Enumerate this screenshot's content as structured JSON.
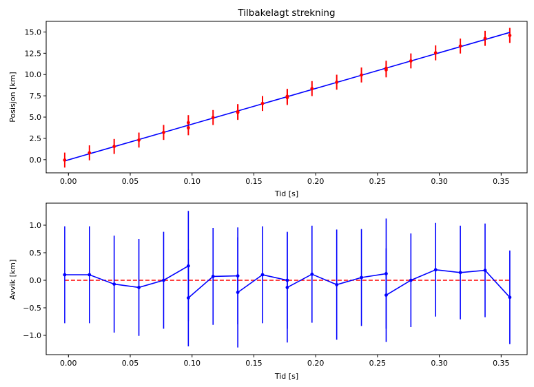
{
  "chart_data": [
    {
      "type": "scatter",
      "title": "Tilbakelagt strekning",
      "xlabel": "Tid [s]",
      "ylabel": "Posisjon [km]",
      "xlim": [
        -0.018,
        0.371
      ],
      "ylim": [
        -1.55,
        16.25
      ],
      "xticks": [
        0.0,
        0.05,
        0.1,
        0.15,
        0.2,
        0.25,
        0.3,
        0.35
      ],
      "xtick_labels": [
        "0.00",
        "0.05",
        "0.10",
        "0.15",
        "0.20",
        "0.25",
        "0.30",
        "0.35"
      ],
      "yticks": [
        0.0,
        2.5,
        5.0,
        7.5,
        10.0,
        12.5,
        15.0
      ],
      "ytick_labels": [
        "0.0",
        "2.5",
        "5.0",
        "7.5",
        "10.0",
        "12.5",
        "15.0"
      ],
      "grid": false,
      "colors": {
        "points": "#ff0000",
        "fit": "#0000ff"
      },
      "series": [
        {
          "kind": "errorbar",
          "x": [
            -0.003,
            0.017,
            0.037,
            0.057,
            0.077,
            0.097,
            0.097,
            0.117,
            0.137,
            0.137,
            0.157,
            0.177,
            0.177,
            0.197,
            0.217,
            0.237,
            0.257,
            0.257,
            0.277,
            0.297,
            0.317,
            0.337,
            0.357
          ],
          "y": [
            -0.05,
            0.8,
            1.55,
            2.3,
            3.2,
            4.35,
            3.75,
            4.95,
            5.65,
            5.55,
            6.6,
            7.45,
            7.3,
            8.35,
            9.1,
            9.95,
            10.75,
            10.55,
            11.6,
            12.55,
            13.35,
            14.25,
            14.6
          ],
          "yerr": 0.88
        },
        {
          "kind": "line",
          "x": [
            -0.003,
            0.357
          ],
          "y": [
            -0.15,
            14.95
          ]
        }
      ]
    },
    {
      "type": "line",
      "title": "",
      "xlabel": "Tid [s]",
      "ylabel": "Avvik [km]",
      "xlim": [
        -0.018,
        0.371
      ],
      "ylim": [
        -1.35,
        1.4
      ],
      "xticks": [
        0.0,
        0.05,
        0.1,
        0.15,
        0.2,
        0.25,
        0.3,
        0.35
      ],
      "xtick_labels": [
        "0.00",
        "0.05",
        "0.10",
        "0.15",
        "0.20",
        "0.25",
        "0.30",
        "0.35"
      ],
      "yticks": [
        -1.0,
        -0.5,
        0.0,
        0.5,
        1.0
      ],
      "ytick_labels": [
        "−1.0",
        "−0.5",
        "0.0",
        "0.5",
        "1.0"
      ],
      "grid": false,
      "colors": {
        "residuals": "#0000ff",
        "zero_line": "#ff0000"
      },
      "series": [
        {
          "kind": "errorbar-line",
          "x": [
            -0.003,
            0.017,
            0.037,
            0.057,
            0.077,
            0.097,
            0.097,
            0.117,
            0.137,
            0.137,
            0.157,
            0.177,
            0.177,
            0.197,
            0.217,
            0.237,
            0.257,
            0.257,
            0.277,
            0.297,
            0.317,
            0.337,
            0.357
          ],
          "y": [
            0.1,
            0.1,
            -0.07,
            -0.13,
            0.0,
            0.26,
            -0.32,
            0.07,
            0.08,
            -0.22,
            0.1,
            0.0,
            -0.13,
            0.11,
            -0.08,
            0.05,
            0.12,
            -0.27,
            0.0,
            0.19,
            0.14,
            0.18,
            -0.31
          ],
          "yerr": [
            0.88,
            0.88,
            0.88,
            0.88,
            0.88,
            1.0,
            0.88,
            0.88,
            0.88,
            1.0,
            0.88,
            0.88,
            1.0,
            0.88,
            1.0,
            0.88,
            1.0,
            0.85,
            0.85,
            0.85,
            0.85,
            0.85,
            0.85
          ]
        },
        {
          "kind": "dashed",
          "x": [
            -0.003,
            0.357
          ],
          "y": [
            0.0,
            0.0
          ]
        }
      ]
    }
  ]
}
